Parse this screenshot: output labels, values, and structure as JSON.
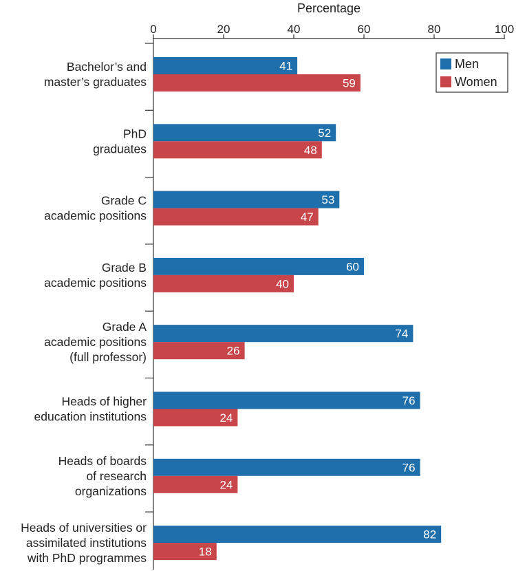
{
  "chart_data": {
    "type": "bar",
    "orientation": "horizontal",
    "title": "",
    "xlabel": "Percentage",
    "ylabel": "",
    "xlim": [
      0,
      100
    ],
    "x_ticks": [
      0,
      20,
      40,
      60,
      80,
      100
    ],
    "x_axis_position": "top",
    "grid": false,
    "legend_position": "top-right",
    "categories": [
      [
        "Bachelor’s and",
        "master’s graduates"
      ],
      [
        "PhD",
        "graduates"
      ],
      [
        "Grade C",
        "academic positions"
      ],
      [
        "Grade B",
        "academic positions"
      ],
      [
        "Grade A",
        "academic positions",
        "(full professor)"
      ],
      [
        "Heads of higher",
        "education institutions"
      ],
      [
        "Heads of boards",
        "of research",
        "organizations"
      ],
      [
        "Heads of universities or",
        "assimilated institutions",
        "with PhD programmes"
      ]
    ],
    "series": [
      {
        "name": "Men",
        "color": "#1f6fad",
        "values": [
          41,
          52,
          53,
          60,
          74,
          76,
          76,
          82
        ]
      },
      {
        "name": "Women",
        "color": "#c8454a",
        "values": [
          59,
          48,
          47,
          40,
          26,
          24,
          24,
          18
        ]
      }
    ]
  }
}
